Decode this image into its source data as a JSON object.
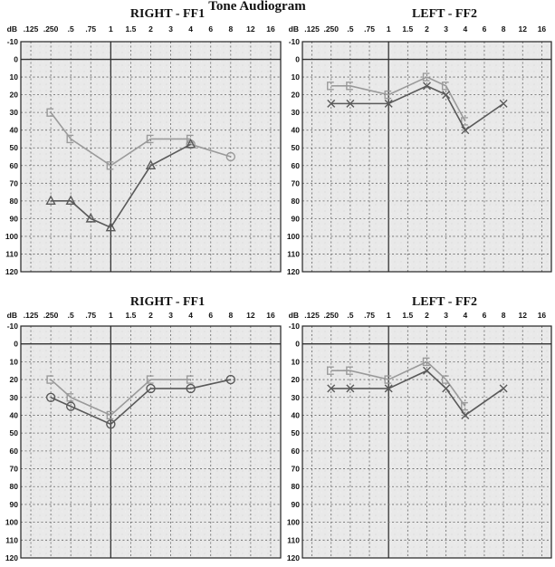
{
  "page": {
    "title": "Tone Audiogram"
  },
  "chart_data": [
    {
      "type": "line",
      "title": "RIGHT - FF1",
      "x_ticks": [
        ".125",
        ".250",
        ".5",
        ".75",
        "1",
        "1.5",
        "2",
        "3",
        "4",
        "6",
        "8",
        "12",
        "16"
      ],
      "y_unit_label": "dB",
      "y_ticks": [
        "-10",
        "0",
        "10",
        "20",
        "30",
        "40",
        "50",
        "60",
        "70",
        "80",
        "90",
        "100",
        "110",
        "120"
      ],
      "ylim": [
        -10,
        120
      ],
      "y_inverted": true,
      "grid": true,
      "series": [
        {
          "marker": "square",
          "color": "#9a9a9a",
          "x": [
            0.25,
            0.5,
            1,
            2,
            4
          ],
          "y": [
            30,
            45,
            60,
            45,
            45
          ]
        },
        {
          "marker": "circle",
          "color": "#9a9a9a",
          "x": [
            4,
            8
          ],
          "y": [
            48,
            55
          ]
        },
        {
          "marker": "triangle",
          "color": "#5a5a5a",
          "x": [
            0.25,
            0.5,
            0.75,
            1,
            2,
            4
          ],
          "y": [
            80,
            80,
            90,
            95,
            60,
            48
          ]
        }
      ]
    },
    {
      "type": "line",
      "title": "LEFT - FF2",
      "x_ticks": [
        ".125",
        ".250",
        ".5",
        ".75",
        "1",
        "1.5",
        "2",
        "3",
        "4",
        "6",
        "8",
        "12",
        "16"
      ],
      "y_unit_label": "dB",
      "y_ticks": [
        "-10",
        "0",
        "10",
        "20",
        "30",
        "40",
        "50",
        "60",
        "70",
        "80",
        "90",
        "100",
        "110",
        "120"
      ],
      "ylim": [
        -10,
        120
      ],
      "y_inverted": true,
      "grid": true,
      "series": [
        {
          "marker": "bracket",
          "color": "#9a9a9a",
          "x": [
            0.25,
            0.5,
            1,
            2,
            3,
            4
          ],
          "y": [
            15,
            15,
            20,
            10,
            15,
            35
          ]
        },
        {
          "marker": "cross",
          "color": "#5a5a5a",
          "x": [
            0.25,
            0.5,
            1,
            2,
            3,
            4,
            8
          ],
          "y": [
            25,
            25,
            25,
            15,
            20,
            40,
            25
          ]
        }
      ]
    },
    {
      "type": "line",
      "title": "RIGHT - FF1",
      "x_ticks": [
        ".125",
        ".250",
        ".5",
        ".75",
        "1",
        "1.5",
        "2",
        "3",
        "4",
        "6",
        "8",
        "12",
        "16"
      ],
      "y_unit_label": "dB",
      "y_ticks": [
        "-10",
        "0",
        "10",
        "20",
        "30",
        "40",
        "50",
        "60",
        "70",
        "80",
        "90",
        "100",
        "110",
        "120"
      ],
      "ylim": [
        -10,
        120
      ],
      "y_inverted": true,
      "grid": true,
      "series": [
        {
          "marker": "square",
          "color": "#9a9a9a",
          "x": [
            0.25,
            0.5,
            1,
            2,
            4
          ],
          "y": [
            20,
            30,
            40,
            20,
            20
          ]
        },
        {
          "marker": "circle",
          "color": "#5a5a5a",
          "x": [
            0.25,
            0.5,
            1,
            2,
            4,
            8
          ],
          "y": [
            30,
            35,
            45,
            25,
            25,
            20
          ]
        }
      ]
    },
    {
      "type": "line",
      "title": "LEFT - FF2",
      "x_ticks": [
        ".125",
        ".250",
        ".5",
        ".75",
        "1",
        "1.5",
        "2",
        "3",
        "4",
        "6",
        "8",
        "12",
        "16"
      ],
      "y_unit_label": "dB",
      "y_ticks": [
        "-10",
        "0",
        "10",
        "20",
        "30",
        "40",
        "50",
        "60",
        "70",
        "80",
        "90",
        "100",
        "110",
        "120"
      ],
      "ylim": [
        -10,
        120
      ],
      "y_inverted": true,
      "grid": true,
      "series": [
        {
          "marker": "bracket",
          "color": "#9a9a9a",
          "x": [
            0.25,
            0.5,
            1,
            2,
            3,
            4
          ],
          "y": [
            15,
            15,
            20,
            10,
            20,
            35
          ]
        },
        {
          "marker": "cross",
          "color": "#5a5a5a",
          "x": [
            0.25,
            0.5,
            1,
            2,
            3,
            4,
            8
          ],
          "y": [
            25,
            25,
            25,
            15,
            25,
            40,
            25
          ]
        }
      ]
    }
  ]
}
